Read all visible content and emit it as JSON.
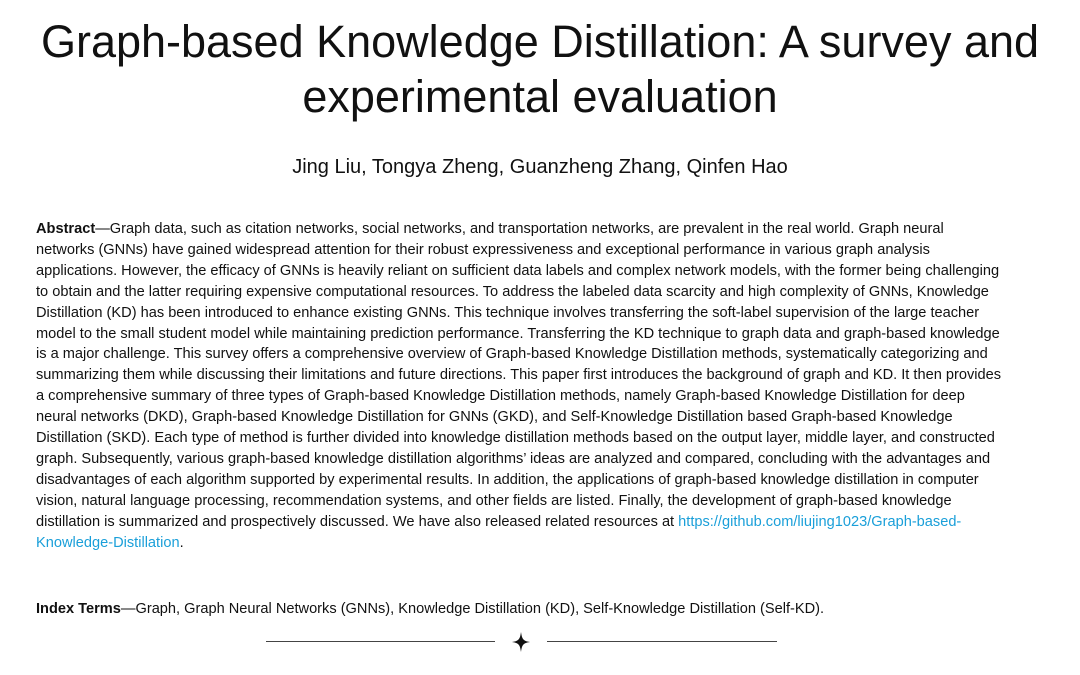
{
  "paper": {
    "title": "Graph-based Knowledge Distillation: A survey and experimental evaluation",
    "authors": "Jing Liu, Tongya Zheng, Guanzheng Zhang, Qinfen Hao",
    "abstract_label": "Abstract",
    "abstract_text": "—Graph data, such as citation networks, social networks, and transportation networks, are prevalent in the real world. Graph neural networks (GNNs) have gained widespread attention for their robust expressiveness and exceptional performance in various graph analysis applications. However, the efficacy of GNNs is heavily reliant on sufficient data labels and complex network models, with the former being challenging to obtain and the latter requiring expensive computational resources. To address the labeled data scarcity and high complexity of GNNs, Knowledge Distillation (KD) has been introduced to enhance existing GNNs. This technique involves transferring the soft-label supervision of the large teacher model to the small student model while maintaining prediction performance. Transferring the KD technique to graph data and graph-based knowledge is a major challenge. This survey offers a comprehensive overview of Graph-based Knowledge Distillation methods, systematically categorizing and summarizing them while discussing their limitations and future directions. This paper first introduces the background of graph and KD. It then provides a comprehensive summary of three types of Graph-based Knowledge Distillation methods, namely Graph-based Knowledge Distillation for deep neural networks (DKD), Graph-based Knowledge Distillation for GNNs (GKD), and Self-Knowledge Distillation based Graph-based Knowledge Distillation (SKD). Each type of method is further divided into knowledge distillation methods based on the output layer, middle layer, and constructed graph. Subsequently, various graph-based knowledge distillation algorithms’ ideas are analyzed and compared, concluding with the advantages and disadvantages of each algorithm supported by experimental results. In addition, the applications of graph-based knowledge distillation in computer vision, natural language processing, recommendation systems, and other fields are listed. Finally, the development of graph-based knowledge distillation is summarized and prospectively discussed. We have also released related resources at ",
    "abstract_link": "https://github.com/liujing1023/Graph-based-Knowledge-Distillation",
    "abstract_end": ".",
    "index_label": "Index Terms",
    "index_text": "—Graph, Graph Neural Networks (GNNs), Knowledge Distillation (KD), Self-Knowledge Distillation (Self-KD)."
  },
  "colors": {
    "link": "#1a9fd9",
    "text": "#111111"
  },
  "divider": {
    "icon": "four-point-star-icon"
  }
}
